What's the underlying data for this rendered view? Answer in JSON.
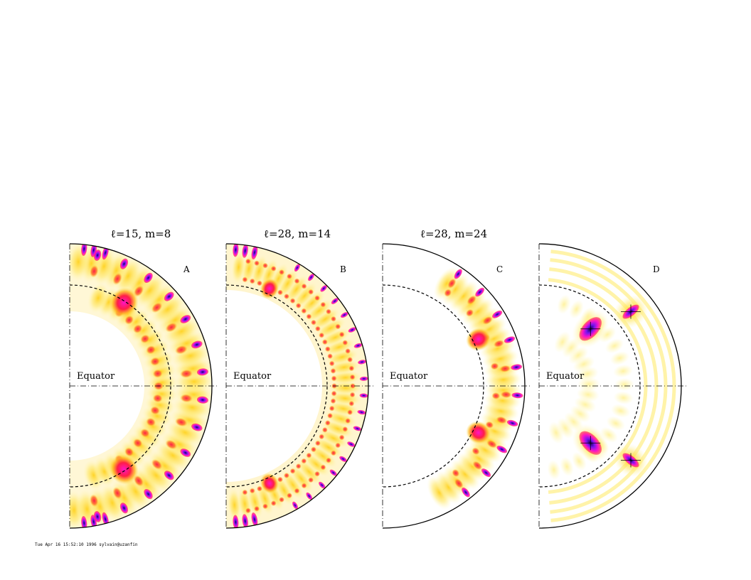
{
  "figure": {
    "footer": "Tue Apr 16 15:52:10 1996 sylvain@uzanfin",
    "equator_label": "Equator",
    "colors": {
      "background": "#ffffff",
      "low": "#fff8c0",
      "mid": "#ffd21e",
      "high": "#ff1e46",
      "higher": "#ff14c8",
      "peak": "#7814f0",
      "max": "#140050"
    }
  },
  "panels": [
    {
      "title": "ℓ=15, m=8",
      "letter": "A",
      "variant": "A"
    },
    {
      "title": "ℓ=28, m=14",
      "letter": "B",
      "variant": "B"
    },
    {
      "title": "ℓ=28, m=24",
      "letter": "C",
      "variant": "C"
    },
    {
      "title": "",
      "letter": "D",
      "variant": "D"
    }
  ]
}
